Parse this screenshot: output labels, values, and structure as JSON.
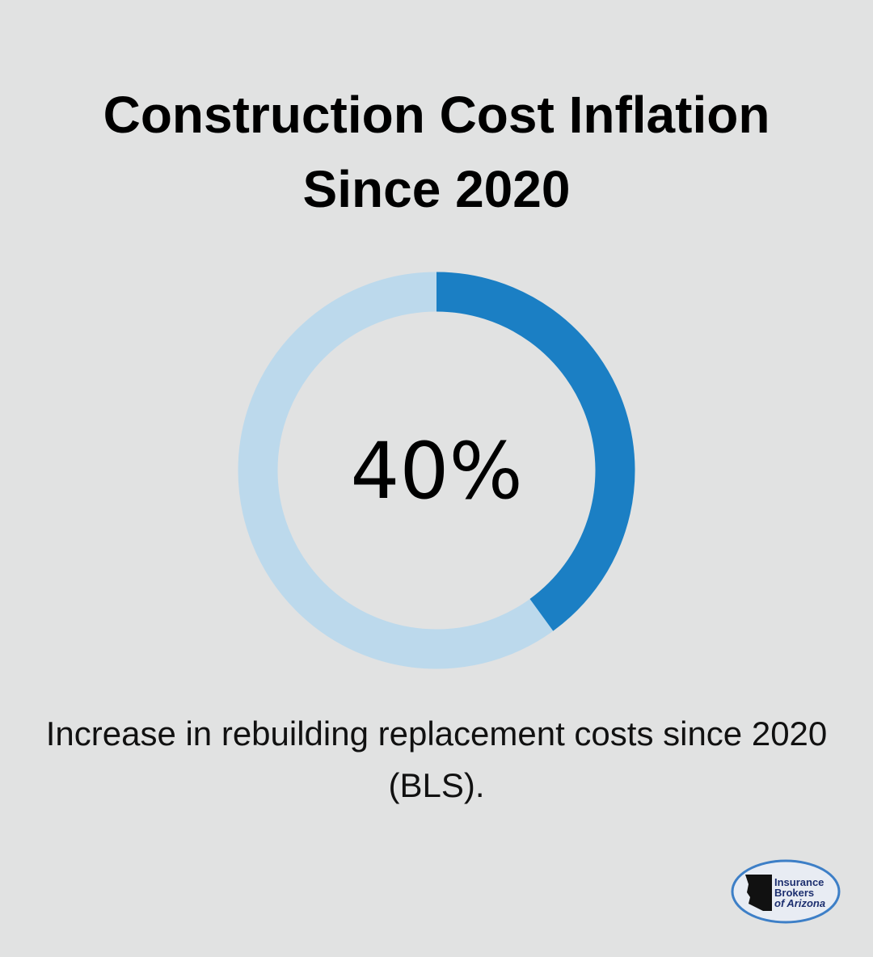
{
  "chart_data": {
    "type": "donut",
    "title": "Construction Cost Inflation Since 2020",
    "values": [
      40
    ],
    "value_labels": [
      "40%"
    ],
    "ylim": [
      0,
      100
    ],
    "color": "#1b7fc4",
    "track_color": "#bcd9ec",
    "caption": "Increase in rebuilding replacement costs since 2020 (BLS)."
  },
  "logo": {
    "lines": [
      "Insurance",
      "Brokers",
      "of Arizona"
    ]
  }
}
